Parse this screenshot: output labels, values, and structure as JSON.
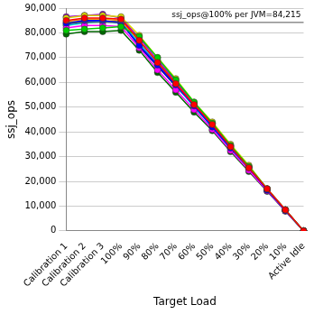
{
  "chart_data": {
    "type": "line",
    "x_label": "Target Load",
    "y_label": "ssj_ops",
    "categories": [
      "Calibration 1",
      "Calibration 2",
      "Calibration 3",
      "100%",
      "90%",
      "80%",
      "70%",
      "60%",
      "50%",
      "40%",
      "30%",
      "20%",
      "10%",
      "Active Idle"
    ],
    "series": [
      {
        "color": "#ff0000",
        "values": [
          85000,
          86000,
          86000,
          85500,
          77000,
          68000,
          59500,
          51000,
          43000,
          34000,
          25500,
          17000,
          8500,
          0
        ]
      },
      {
        "color": "#00cc00",
        "values": [
          81000,
          81500,
          82000,
          82500,
          78500,
          70000,
          61000,
          52000,
          43500,
          34500,
          26000,
          17000,
          8500,
          0
        ]
      },
      {
        "color": "#0000ff",
        "values": [
          84000,
          85000,
          85000,
          84000,
          75000,
          67000,
          59000,
          50500,
          42000,
          33500,
          25500,
          16500,
          8300,
          0
        ]
      },
      {
        "color": "#dddd00",
        "values": [
          86000,
          87000,
          87000,
          86500,
          79000,
          70000,
          61500,
          52000,
          44000,
          35000,
          26500,
          17000,
          8500,
          0
        ]
      },
      {
        "color": "#ff00ff",
        "values": [
          82000,
          83000,
          83000,
          82500,
          74000,
          65000,
          57000,
          49000,
          41000,
          32500,
          24500,
          16200,
          8100,
          0
        ]
      },
      {
        "color": "#00cccc",
        "values": [
          83000,
          84000,
          84500,
          84000,
          76000,
          67500,
          59000,
          50000,
          42000,
          33000,
          25000,
          16500,
          8200,
          0
        ]
      },
      {
        "color": "#006600",
        "values": [
          79500,
          80500,
          80500,
          81000,
          73000,
          64000,
          56000,
          48000,
          40500,
          32000,
          24000,
          16000,
          8000,
          0
        ]
      },
      {
        "color": "#9900cc",
        "values": [
          86500,
          87000,
          87500,
          86000,
          78000,
          69000,
          60500,
          51500,
          43500,
          34500,
          26000,
          17000,
          8500,
          0
        ]
      },
      {
        "color": "#ff9900",
        "values": [
          84500,
          85500,
          85500,
          85000,
          76500,
          68500,
          60000,
          51000,
          43000,
          34000,
          25500,
          16800,
          8400,
          0
        ]
      },
      {
        "color": "#000099",
        "values": [
          83500,
          84500,
          84500,
          84500,
          74500,
          66500,
          58500,
          50500,
          42000,
          33500,
          25000,
          16500,
          8300,
          0
        ]
      }
    ],
    "marker": "circle",
    "ylim": [
      0,
      90000
    ],
    "yticks": [
      0,
      {
        "value": 10000,
        "label": "10,000"
      },
      {
        "value": 20000,
        "label": "20,000"
      },
      {
        "value": 30000,
        "label": "30,000"
      },
      {
        "value": 40000,
        "label": "40,000"
      },
      {
        "value": 50000,
        "label": "50,000"
      },
      {
        "value": 60000,
        "label": "60,000"
      },
      {
        "value": 70000,
        "label": "70,000"
      },
      {
        "value": 80000,
        "label": "80,000"
      },
      {
        "value": 90000,
        "label": "90,000"
      }
    ],
    "annotations": [
      {
        "text": "ssj_ops@100% per JVM=84,215",
        "value": 84215
      }
    ],
    "grid": true
  }
}
